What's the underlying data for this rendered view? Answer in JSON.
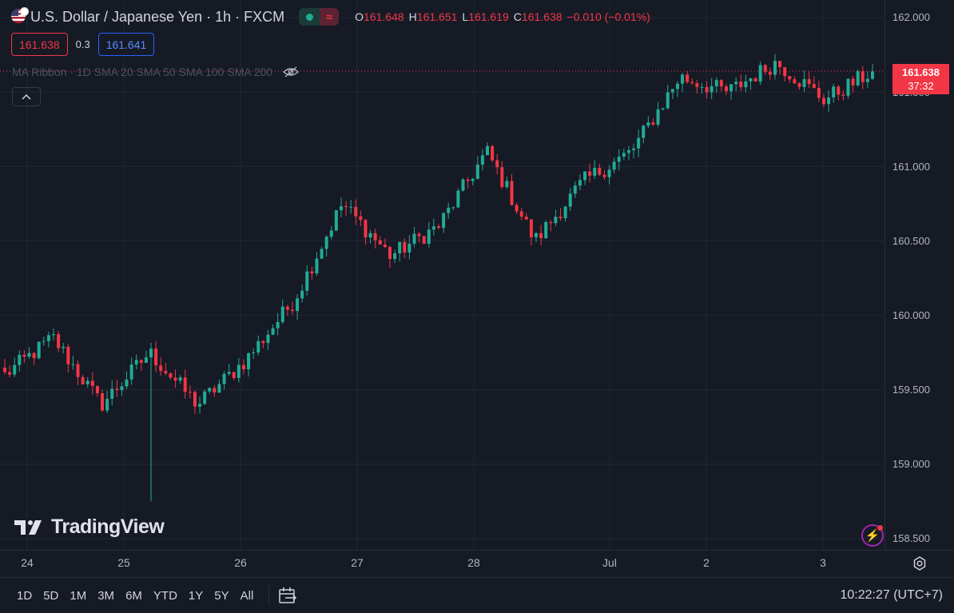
{
  "symbol": {
    "title": "U.S. Dollar / Japanese Yen · 1h · FXCM",
    "flag_icon": "us-flag-icon",
    "market_status": "open",
    "colors": {
      "up": "#22ab94",
      "down": "#f23645",
      "background": "#161a25",
      "grid": "#232733",
      "buy": "#2962ff"
    }
  },
  "ohlc": {
    "open_key": "O",
    "open": "161.648",
    "high_key": "H",
    "high": "161.651",
    "low_key": "L",
    "low": "161.619",
    "close_key": "C",
    "close": "161.638",
    "change": "−0.010 (−0.01%)"
  },
  "quotes": {
    "sell": "161.638",
    "spread": "0.3",
    "buy": "161.641"
  },
  "indicator": {
    "label": "MA Ribbon · 1D SMA 20 SMA 50 SMA 100 SMA 200",
    "visibility_icon": "eye-off-icon"
  },
  "watermark": {
    "text": "TradingView",
    "logo_icon": "tradingview-logo-icon"
  },
  "price_axis": {
    "labels": [
      "162.000",
      "161.500",
      "161.000",
      "160.500",
      "160.000",
      "159.500",
      "159.000",
      "158.500"
    ],
    "last_price": "161.638",
    "countdown": "37:32"
  },
  "time_axis": {
    "labels": [
      "24",
      "25",
      "26",
      "27",
      "28",
      "Jul",
      "2",
      "3"
    ]
  },
  "bottom_bar": {
    "ranges": [
      "1D",
      "5D",
      "1M",
      "3M",
      "6M",
      "YTD",
      "1Y",
      "5Y",
      "All"
    ],
    "clock": "10:22:27 (UTC+7)"
  },
  "chart_data": {
    "type": "candlestick",
    "title": "U.S. Dollar / Japanese Yen · 1h · FXCM",
    "interval": "1h",
    "ylim": [
      158.45,
      162.08
    ],
    "x_ticks": [
      "24",
      "25",
      "26",
      "27",
      "28",
      "Jul",
      "2",
      "3"
    ],
    "grid": true,
    "key_points": [
      {
        "date": "24",
        "close": 159.6
      },
      {
        "date": "24",
        "close": 159.85
      },
      {
        "date": "25",
        "low": 158.75,
        "close": 159.4
      },
      {
        "date": "25",
        "close": 159.75
      },
      {
        "date": "26",
        "close": 159.4
      },
      {
        "date": "26",
        "close": 159.7
      },
      {
        "date": "27",
        "close": 160.1
      },
      {
        "date": "27",
        "close": 160.75
      },
      {
        "date": "27",
        "close": 160.4
      },
      {
        "date": "28",
        "close": 160.6
      },
      {
        "date": "28",
        "close": 161.1
      },
      {
        "date": "28",
        "close": 160.5
      },
      {
        "date": "Jul",
        "close": 160.9
      },
      {
        "date": "Jul",
        "close": 161.1
      },
      {
        "date": "2",
        "close": 161.6
      },
      {
        "date": "2",
        "close": 161.5
      },
      {
        "date": "2",
        "close": 161.7
      },
      {
        "date": "3",
        "close": 161.45
      },
      {
        "date": "3",
        "close": 161.638
      }
    ]
  }
}
